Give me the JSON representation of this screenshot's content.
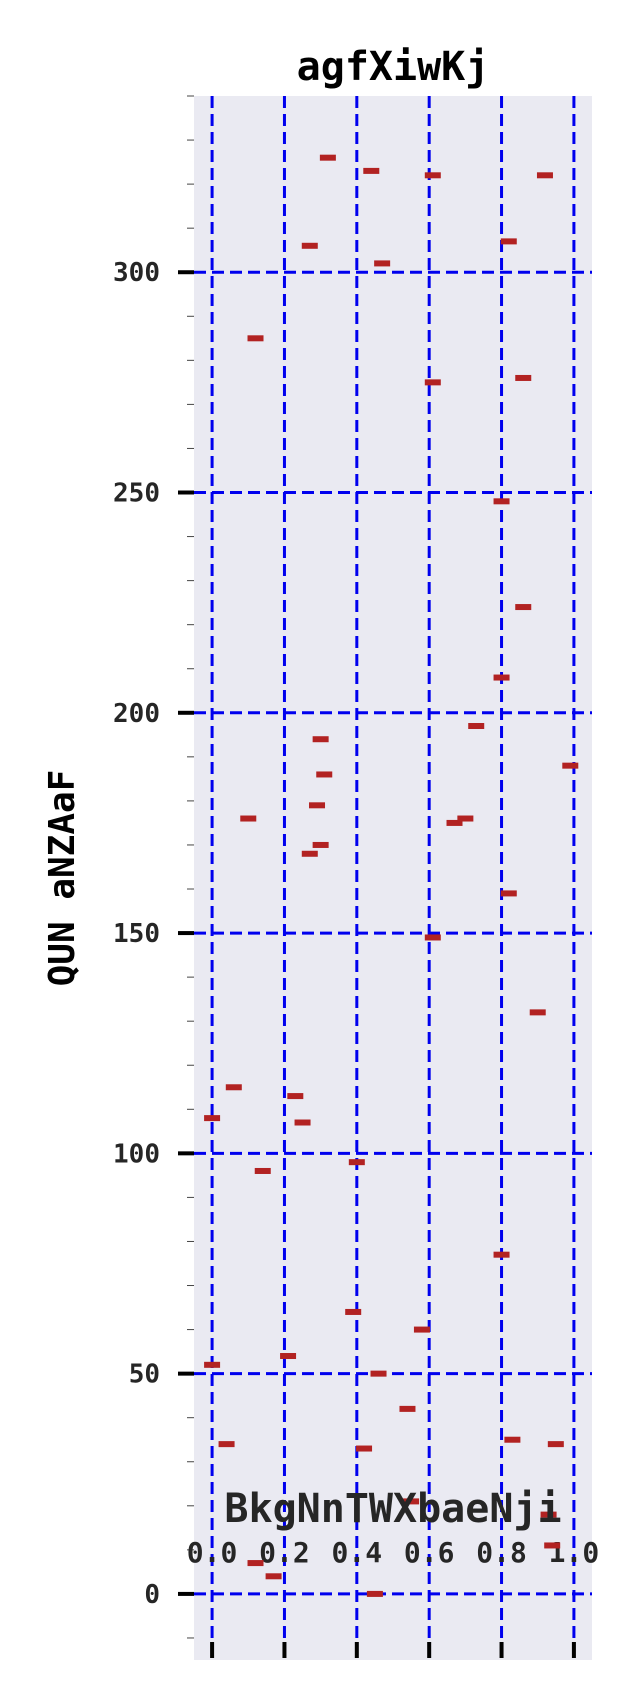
{
  "chart_data": {
    "type": "scatter",
    "title": "agfXiwKj",
    "xlabel": "BkgNnTWXbaeNji",
    "ylabel": "QUN aNZAaF",
    "xlim": [
      -0.05,
      1.05
    ],
    "ylim": [
      -15,
      340
    ],
    "xticks": [
      0.0,
      0.2,
      0.4,
      0.6,
      0.8,
      1.0
    ],
    "xtick_labels": [
      "0.0",
      "0.2",
      "0.4",
      "0.6",
      "0.8",
      "1.0"
    ],
    "yticks": [
      0,
      50,
      100,
      150,
      200,
      250,
      300
    ],
    "ytick_labels": [
      "0",
      "50",
      "100",
      "150",
      "200",
      "250",
      "300"
    ],
    "y_minor_step": 10,
    "grid": true,
    "colors": {
      "background": "#eaeaf2",
      "grid": "#0000ee",
      "marker": "#b22222",
      "tick": "#000000"
    },
    "marker": "horizontal-dash",
    "series": [
      {
        "x": [
          0.32,
          0.44,
          0.61,
          0.92,
          0.27,
          0.47,
          0.82,
          0.12,
          0.61,
          0.86,
          0.8,
          0.86,
          0.8,
          0.73,
          0.3,
          0.99,
          0.31,
          0.29,
          0.1,
          0.67,
          0.7,
          0.27,
          0.3,
          0.82,
          0.61,
          0.9,
          0.06,
          0.0,
          0.23,
          0.25,
          0.14,
          0.4,
          0.8,
          0.39,
          0.58,
          0.0,
          0.21,
          0.46,
          0.54,
          0.04,
          0.42,
          0.83,
          0.95,
          0.55,
          0.93,
          0.94,
          0.12,
          0.17,
          0.45
        ],
        "y": [
          326,
          323,
          322,
          322,
          306,
          302,
          307,
          285,
          275,
          276,
          248,
          224,
          208,
          197,
          194,
          188,
          186,
          179,
          176,
          175,
          176,
          168,
          170,
          159,
          149,
          132,
          115,
          108,
          113,
          107,
          96,
          98,
          77,
          64,
          60,
          52,
          54,
          50,
          42,
          34,
          33,
          35,
          34,
          21,
          18,
          11,
          7,
          4,
          0
        ]
      }
    ]
  }
}
